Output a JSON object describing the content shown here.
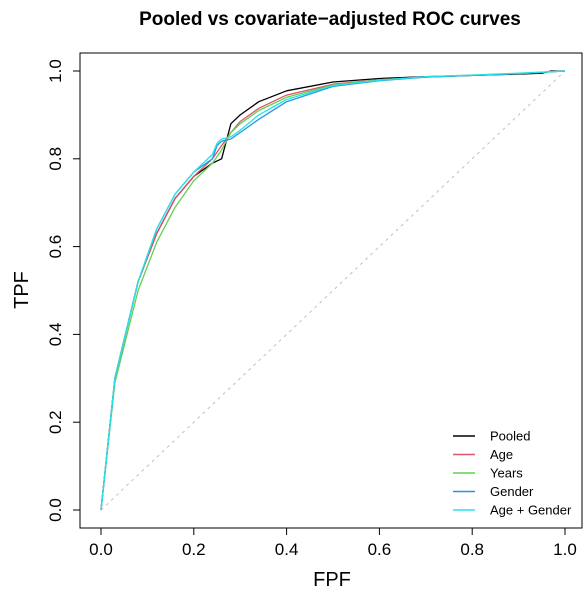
{
  "chart_data": {
    "type": "line",
    "title": "Pooled vs covariate−adjusted ROC curves",
    "xlabel": "FPF",
    "ylabel": "TPF",
    "xlim": [
      0,
      1
    ],
    "ylim": [
      0,
      1
    ],
    "xticks": [
      0.0,
      0.2,
      0.4,
      0.6,
      0.8,
      1.0
    ],
    "yticks": [
      0.0,
      0.2,
      0.4,
      0.6,
      0.8,
      1.0
    ],
    "xtick_labels": [
      "0.0",
      "0.2",
      "0.4",
      "0.6",
      "0.8",
      "1.0"
    ],
    "ytick_labels": [
      "0.0",
      "0.2",
      "0.4",
      "0.6",
      "0.8",
      "1.0"
    ],
    "grid": false,
    "reference_line": {
      "from": [
        0,
        0
      ],
      "to": [
        1,
        1
      ],
      "style": "dotted",
      "color": "#c0c0c0"
    },
    "legend_position": "bottom-right",
    "series": [
      {
        "name": "Pooled",
        "color": "#000000",
        "x": [
          0,
          0.03,
          0.08,
          0.12,
          0.16,
          0.2,
          0.24,
          0.26,
          0.27,
          0.28,
          0.3,
          0.34,
          0.4,
          0.5,
          0.6,
          0.7,
          0.8,
          0.9,
          0.95,
          0.97,
          1.0
        ],
        "y": [
          0,
          0.3,
          0.52,
          0.63,
          0.71,
          0.76,
          0.79,
          0.8,
          0.84,
          0.88,
          0.9,
          0.93,
          0.955,
          0.975,
          0.983,
          0.987,
          0.99,
          0.993,
          0.995,
          1.0,
          1.0
        ]
      },
      {
        "name": "Age",
        "color": "#df536b",
        "x": [
          0,
          0.03,
          0.08,
          0.12,
          0.16,
          0.2,
          0.24,
          0.26,
          0.28,
          0.3,
          0.34,
          0.4,
          0.5,
          0.6,
          0.7,
          0.8,
          0.9,
          1.0
        ],
        "y": [
          0,
          0.3,
          0.52,
          0.63,
          0.71,
          0.76,
          0.8,
          0.83,
          0.86,
          0.885,
          0.915,
          0.945,
          0.97,
          0.98,
          0.986,
          0.99,
          0.994,
          1.0
        ]
      },
      {
        "name": "Years",
        "color": "#61d04f",
        "x": [
          0,
          0.03,
          0.08,
          0.12,
          0.16,
          0.2,
          0.24,
          0.26,
          0.28,
          0.3,
          0.34,
          0.4,
          0.5,
          0.6,
          0.7,
          0.8,
          0.9,
          1.0
        ],
        "y": [
          0,
          0.29,
          0.5,
          0.61,
          0.69,
          0.75,
          0.79,
          0.82,
          0.86,
          0.88,
          0.91,
          0.94,
          0.968,
          0.98,
          0.986,
          0.99,
          0.994,
          1.0
        ]
      },
      {
        "name": "Gender",
        "color": "#2297e6",
        "x": [
          0,
          0.03,
          0.08,
          0.12,
          0.16,
          0.2,
          0.24,
          0.25,
          0.26,
          0.28,
          0.3,
          0.34,
          0.4,
          0.5,
          0.6,
          0.7,
          0.8,
          0.9,
          1.0
        ],
        "y": [
          0,
          0.3,
          0.52,
          0.64,
          0.72,
          0.77,
          0.8,
          0.83,
          0.84,
          0.845,
          0.86,
          0.89,
          0.93,
          0.965,
          0.978,
          0.986,
          0.99,
          0.994,
          1.0
        ]
      },
      {
        "name": "Age + Gender",
        "color": "#28e2e5",
        "x": [
          0,
          0.03,
          0.08,
          0.12,
          0.16,
          0.2,
          0.24,
          0.25,
          0.26,
          0.28,
          0.3,
          0.34,
          0.4,
          0.5,
          0.6,
          0.7,
          0.8,
          0.9,
          1.0
        ],
        "y": [
          0,
          0.3,
          0.52,
          0.64,
          0.72,
          0.77,
          0.81,
          0.835,
          0.845,
          0.85,
          0.865,
          0.9,
          0.935,
          0.967,
          0.979,
          0.987,
          0.991,
          0.995,
          1.0
        ]
      }
    ]
  }
}
